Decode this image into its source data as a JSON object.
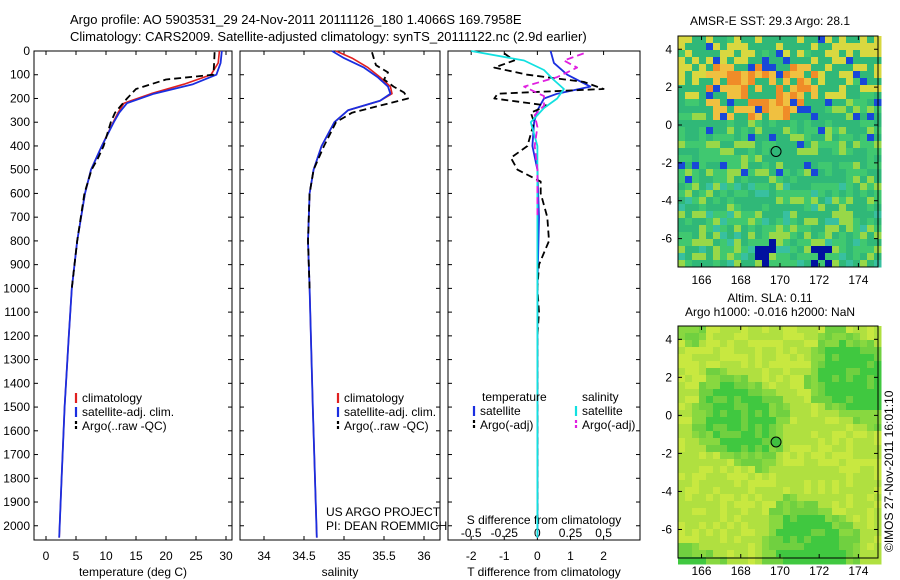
{
  "header": {
    "line1": "Argo profile: AO 5903531_29 24-Nov-2011 20111126_180 1.4066S 169.7958E",
    "line2": "Climatology: CARS2009. Satellite-adjusted climatology: synTS_20111122.nc (2.9d earlier)"
  },
  "credit": "©IMOS 27-Nov-2011 16:01:10",
  "colors": {
    "clim": "#e02020",
    "sat": "#1a2ee0",
    "argo": "#000000",
    "sat_s": "#12e0e0",
    "argo_s": "#e020e0"
  },
  "depth_axis": {
    "ticks": [
      0,
      100,
      200,
      300,
      400,
      500,
      600,
      700,
      800,
      900,
      1000,
      1100,
      1200,
      1300,
      1400,
      1500,
      1600,
      1700,
      1800,
      1900,
      2000
    ],
    "ylim": [
      0,
      2060
    ]
  },
  "chart_data": [
    {
      "type": "line",
      "xlabel": "temperature (deg C)",
      "xlim": [
        -2,
        31
      ],
      "xticks": [
        0,
        5,
        10,
        15,
        20,
        25,
        30
      ],
      "legend": [
        "climatology",
        "satellite-adj. clim.",
        "Argo(..raw -QC)"
      ],
      "series": [
        {
          "name": "climatology",
          "style": "clim",
          "depth": [
            0,
            50,
            100,
            140,
            180,
            220,
            260,
            300,
            400,
            500,
            600,
            800,
            1000,
            1200,
            1500,
            1800,
            2050
          ],
          "values": [
            28.9,
            28.7,
            27.5,
            23,
            17.5,
            13,
            12,
            11.2,
            9.3,
            7.5,
            6.5,
            5.2,
            4.3,
            3.8,
            3.1,
            2.6,
            2.2
          ]
        },
        {
          "name": "satellite-adj. clim.",
          "style": "sat",
          "depth": [
            0,
            50,
            100,
            140,
            180,
            220,
            260,
            300,
            400,
            500,
            600,
            800,
            1000,
            1200,
            1500,
            1800,
            2050
          ],
          "values": [
            29.3,
            29.1,
            28.4,
            24.5,
            18,
            13.5,
            12.2,
            11.3,
            9.3,
            7.5,
            6.5,
            5.2,
            4.3,
            3.8,
            3.1,
            2.6,
            2.2
          ]
        },
        {
          "name": "Argo(..raw -QC)",
          "style": "argo",
          "depth": [
            5,
            60,
            100,
            120,
            160,
            200,
            230,
            260,
            300,
            350,
            400,
            450,
            500,
            550,
            600,
            700,
            800,
            1000
          ],
          "values": [
            28.1,
            28.0,
            27.9,
            20,
            15,
            13.5,
            12.5,
            11.5,
            10.8,
            10.2,
            9.6,
            8.7,
            7.6,
            7.0,
            6.4,
            5.8,
            5.2,
            4.3
          ]
        }
      ]
    },
    {
      "type": "line",
      "xlabel": "salinity",
      "xlim": [
        33.7,
        36.2
      ],
      "xticks": [
        34,
        34.5,
        35,
        35.5,
        36
      ],
      "legend": [
        "climatology",
        "satellite-adj. clim.",
        "Argo(..raw -QC)"
      ],
      "annotation": [
        "US ARGO PROJECT",
        "PI: DEAN ROEMMICH"
      ],
      "series": [
        {
          "name": "climatology",
          "style": "clim",
          "depth": [
            0,
            30,
            70,
            110,
            150,
            180,
            210,
            250,
            300,
            400,
            500,
            600,
            800,
            1000,
            1500,
            2050
          ],
          "values": [
            34.9,
            35.1,
            35.3,
            35.45,
            35.58,
            35.6,
            35.45,
            35.05,
            34.88,
            34.72,
            34.62,
            34.57,
            34.55,
            34.57,
            34.61,
            34.66
          ]
        },
        {
          "name": "satellite-adj. clim.",
          "style": "sat",
          "depth": [
            0,
            30,
            70,
            110,
            150,
            180,
            210,
            250,
            300,
            400,
            500,
            600,
            800,
            1000,
            1500,
            2050
          ],
          "values": [
            34.85,
            35.0,
            35.25,
            35.42,
            35.55,
            35.58,
            35.45,
            35.05,
            34.88,
            34.72,
            34.62,
            34.57,
            34.55,
            34.57,
            34.61,
            34.66
          ]
        },
        {
          "name": "Argo(..raw -QC)",
          "style": "argo",
          "depth": [
            5,
            40,
            60,
            90,
            120,
            150,
            175,
            200,
            230,
            260,
            300,
            400,
            500,
            600,
            800,
            1000
          ],
          "values": [
            35.35,
            35.38,
            35.4,
            35.55,
            35.5,
            35.62,
            35.75,
            35.8,
            35.45,
            35.1,
            34.9,
            34.75,
            34.62,
            34.57,
            34.55,
            34.57
          ]
        }
      ]
    },
    {
      "type": "line",
      "xlabel": "T difference from climatology",
      "xlabel_top": "S difference from climatology",
      "xlim": [
        -2.7,
        3.1
      ],
      "xticks": [
        -2,
        -1,
        0,
        1,
        2
      ],
      "xticks_s": [
        -0.5,
        -0.25,
        0,
        0.25,
        0.5
      ],
      "legend_t_title": "temperature",
      "legend_s_title": "salinity",
      "legend_t": [
        "satellite",
        "Argo(-adj)"
      ],
      "legend_s": [
        "satellite",
        "Argo(-adj)"
      ],
      "series": [
        {
          "name": "T satellite",
          "style": "sat",
          "depth": [
            0,
            50,
            100,
            150,
            180,
            200,
            250,
            300,
            400,
            500,
            700,
            1000,
            1500,
            2050
          ],
          "values": [
            0.4,
            0.5,
            0.9,
            1.6,
            0.6,
            0.2,
            0,
            -0.1,
            -0.15,
            0,
            0.05,
            0,
            0,
            0
          ]
        },
        {
          "name": "T Argo(-adj)",
          "style": "argo",
          "depth": [
            10,
            40,
            70,
            100,
            130,
            160,
            180,
            200,
            230,
            260,
            300,
            350,
            400,
            450,
            500,
            550,
            600,
            700,
            800,
            900,
            1000,
            1100,
            1200,
            1300,
            1400,
            1500,
            1600,
            1700,
            1800,
            1900,
            2000
          ],
          "values": [
            -1.0,
            -0.7,
            -1.3,
            -0.3,
            1.4,
            2.0,
            -1.2,
            -1.3,
            0.3,
            -0.2,
            -0.1,
            -0.2,
            -0.3,
            -0.8,
            -0.6,
            0.1,
            0.1,
            0.3,
            0.35,
            0.05,
            0,
            0.05,
            0,
            0,
            0,
            0,
            0,
            0,
            0,
            0,
            0
          ]
        },
        {
          "name": "S satellite",
          "style": "sat_s",
          "depth": [
            0,
            40,
            80,
            120,
            160,
            200,
            240,
            300,
            400,
            500,
            700,
            1000,
            1500,
            2050
          ],
          "values": [
            -0.5,
            -0.1,
            0.05,
            0.12,
            0.2,
            0.15,
            0.05,
            -0.05,
            0,
            0,
            0,
            0,
            0,
            0
          ]
        },
        {
          "name": "S Argo(-adj)",
          "style": "argo_s",
          "depth": [
            10,
            40,
            70,
            110,
            150,
            190,
            230,
            270,
            320,
            400,
            500,
            600,
            700
          ],
          "values": [
            0.35,
            0.2,
            0.3,
            0.15,
            -0.1,
            0.05,
            0.05,
            -0.02,
            0,
            -0.02,
            0,
            0,
            0
          ]
        }
      ]
    }
  ],
  "sst_map": {
    "title": "AMSR-E SST: 29.3 Argo: 28.1",
    "xticks": [
      166,
      168,
      170,
      172,
      174
    ],
    "yticks": [
      4,
      2,
      0,
      -2,
      -4,
      -6
    ],
    "argo_lon": 169.8,
    "argo_lat": -1.4
  },
  "sla_map": {
    "title_line1": "Altim. SLA: 0.11",
    "title_line2": "Argo h1000: -0.016 h2000: NaN",
    "xticks": [
      166,
      168,
      170,
      172,
      174
    ],
    "yticks": [
      4,
      2,
      0,
      -2,
      -4,
      -6
    ],
    "argo_lon": 169.8,
    "argo_lat": -1.4
  }
}
